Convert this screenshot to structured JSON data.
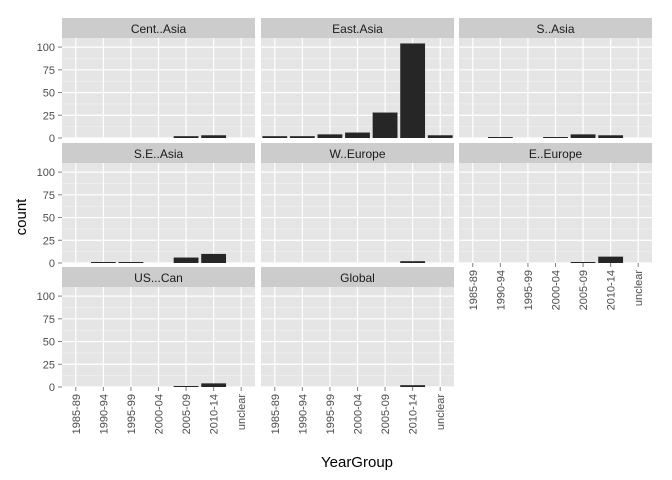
{
  "chart_data": {
    "type": "bar",
    "layout": "facet_wrap",
    "xlabel": "YearGroup",
    "ylabel": "count",
    "categories": [
      "1985-89",
      "1990-94",
      "1995-99",
      "2000-04",
      "2005-09",
      "2010-14",
      "unclear"
    ],
    "ylim": [
      0,
      110
    ],
    "yticks": [
      0,
      25,
      50,
      75,
      100
    ],
    "grid": true,
    "colors": {
      "bar": "#262626",
      "panel": "#e5e5e5",
      "strip": "#cccccc",
      "grid_major": "#ffffff",
      "grid_minor": "#f2f2f2"
    },
    "facets": [
      {
        "name": "Cent..Asia",
        "values": [
          null,
          null,
          null,
          null,
          2,
          3,
          null
        ]
      },
      {
        "name": "East.Asia",
        "values": [
          2,
          2,
          4,
          6,
          28,
          104,
          3
        ]
      },
      {
        "name": "S..Asia",
        "values": [
          null,
          1,
          null,
          1,
          4,
          3,
          null
        ]
      },
      {
        "name": "S.E..Asia",
        "values": [
          null,
          1,
          1,
          null,
          6,
          10,
          null
        ]
      },
      {
        "name": "W..Europe",
        "values": [
          null,
          null,
          null,
          null,
          null,
          2,
          null
        ]
      },
      {
        "name": "E..Europe",
        "values": [
          null,
          null,
          null,
          null,
          1,
          7,
          null
        ]
      },
      {
        "name": "US...Can",
        "values": [
          null,
          null,
          null,
          null,
          1,
          4,
          null
        ]
      },
      {
        "name": "Global",
        "values": [
          null,
          null,
          null,
          null,
          null,
          2,
          null
        ]
      }
    ]
  }
}
